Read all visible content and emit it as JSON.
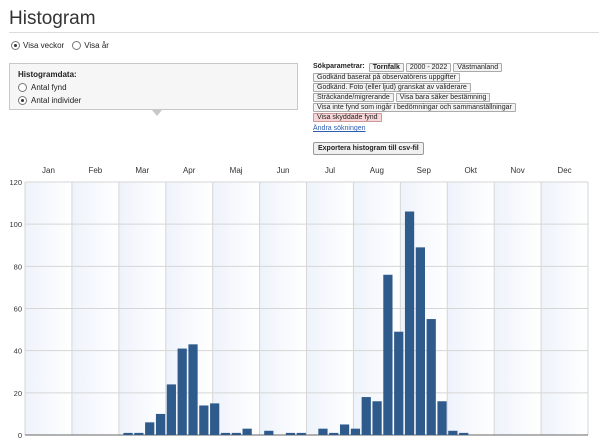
{
  "page": {
    "title": "Histogram"
  },
  "view_toggle": {
    "options": [
      {
        "label": "Visa veckor",
        "selected": true
      },
      {
        "label": "Visa år",
        "selected": false
      }
    ]
  },
  "histogram_data": {
    "label": "Histogramdata:",
    "options": [
      {
        "label": "Antal fynd",
        "selected": false
      },
      {
        "label": "Antal individer",
        "selected": true
      }
    ]
  },
  "search_params": {
    "lead": "Sökparametrar:",
    "tags": [
      {
        "text": "Tornfalk",
        "bold": true
      },
      {
        "text": "2000 - 2022"
      },
      {
        "text": "Västmanland"
      },
      {
        "text": "Godkänd baserat på observatörens uppgifter"
      },
      {
        "text": "Godkänd. Foto (eller ljud) granskat av validerare"
      },
      {
        "text": "Sträckande/migrerande"
      },
      {
        "text": "Visa bara säker bestämning"
      },
      {
        "text": "Visa inte fynd som ingår i bedömningar och sammanställningar"
      },
      {
        "text": "Visa skyddade fynd",
        "highlight": true
      }
    ],
    "change_link": "Ändra sökningen"
  },
  "export_button": "Exportera histogram till csv-fil",
  "colors": {
    "bar": "#2f5b8c",
    "plot_band_a": "#eef3fb",
    "plot_band_b": "#ffffff",
    "grid": "#d6d6d6"
  },
  "chart_data": {
    "type": "bar",
    "months": [
      "Jan",
      "Feb",
      "Mar",
      "Apr",
      "Maj",
      "Jun",
      "Jul",
      "Aug",
      "Sep",
      "Okt",
      "Nov",
      "Dec"
    ],
    "x_unit": "week",
    "ylim": [
      0,
      120
    ],
    "yticks": [
      0,
      20,
      40,
      60,
      80,
      100,
      120
    ],
    "grid": true,
    "weeks": [
      1,
      2,
      3,
      4,
      5,
      6,
      7,
      8,
      9,
      10,
      11,
      12,
      13,
      14,
      15,
      16,
      17,
      18,
      19,
      20,
      21,
      22,
      23,
      24,
      25,
      26,
      27,
      28,
      29,
      30,
      31,
      32,
      33,
      34,
      35,
      36,
      37,
      38,
      39,
      40,
      41,
      42,
      43,
      44,
      45,
      46,
      47,
      48,
      49,
      50,
      51,
      52
    ],
    "values": [
      0,
      0,
      0,
      0,
      0,
      0,
      0,
      0,
      0,
      1,
      1,
      6,
      10,
      24,
      41,
      43,
      14,
      15,
      1,
      1,
      3,
      0,
      2,
      0,
      1,
      1,
      0,
      3,
      1,
      5,
      3,
      18,
      16,
      76,
      49,
      106,
      89,
      55,
      16,
      2,
      1,
      0,
      0,
      0,
      0,
      0,
      0,
      0,
      0,
      0,
      0,
      0
    ]
  }
}
